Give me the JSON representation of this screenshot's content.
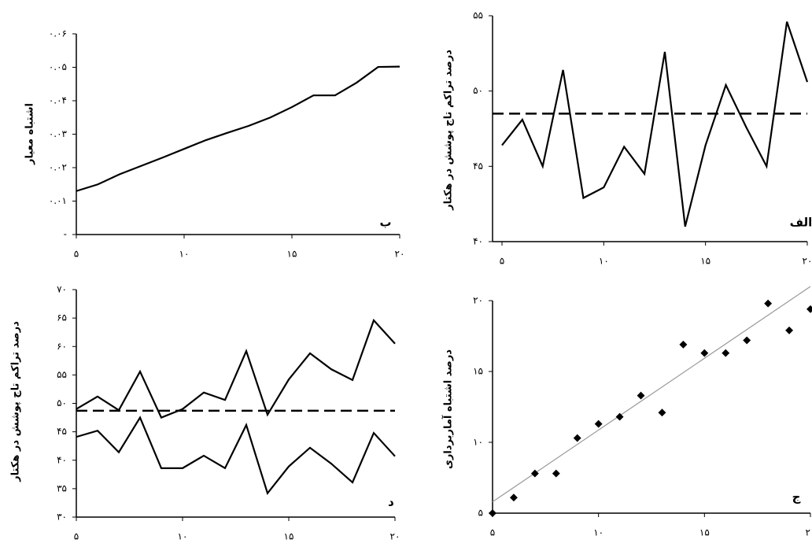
{
  "chart_data": [
    {
      "type": "line",
      "panel_label": "ب",
      "y_label": "اشتباه معیار",
      "x": [
        5,
        6,
        7,
        8,
        9,
        10,
        11,
        12,
        13,
        14,
        15,
        16,
        17,
        18,
        19,
        20
      ],
      "xlim": [
        5,
        20
      ],
      "xticks": [
        {
          "value": 5,
          "label": "۵"
        },
        {
          "value": 10,
          "label": "۱۰"
        },
        {
          "value": 15,
          "label": "۱۵"
        },
        {
          "value": 20,
          "label": "۲۰"
        }
      ],
      "ylim": [
        0,
        0.06
      ],
      "yticks": [
        {
          "value": 0,
          "label": "-"
        },
        {
          "value": 0.01,
          "label": "۰.۰۱"
        },
        {
          "value": 0.02,
          "label": "۰.۰۲"
        },
        {
          "value": 0.03,
          "label": "۰.۰۳"
        },
        {
          "value": 0.04,
          "label": "۰.۰۴"
        },
        {
          "value": 0.05,
          "label": "۰.۰۵"
        },
        {
          "value": 0.06,
          "label": "۰.۰۶"
        }
      ],
      "series": [
        {
          "color": "#000000",
          "values": [
            0.013,
            0.015,
            0.018,
            0.0205,
            0.023,
            0.0256,
            0.0282,
            0.0304,
            0.0325,
            0.035,
            0.0381,
            0.0416,
            0.0416,
            0.0454,
            0.0501,
            0.0502
          ]
        }
      ]
    },
    {
      "type": "line",
      "panel_label": "الف",
      "y_label": "درصد تراکم تاج پوشش در هکتار",
      "x": [
        5,
        6,
        7,
        8,
        9,
        10,
        11,
        12,
        13,
        14,
        15,
        16,
        17,
        18,
        19,
        20
      ],
      "xlim": [
        5,
        20
      ],
      "xticks": [
        {
          "value": 5,
          "label": "۵"
        },
        {
          "value": 10,
          "label": "۱۰"
        },
        {
          "value": 15,
          "label": "۱۵"
        },
        {
          "value": 20,
          "label": "۲۰"
        }
      ],
      "ylim": [
        40,
        55
      ],
      "yticks": [
        {
          "value": 40,
          "label": "۴۰"
        },
        {
          "value": 45,
          "label": "۴۵"
        },
        {
          "value": 50,
          "label": "۵۰"
        },
        {
          "value": 55,
          "label": "۵۵"
        }
      ],
      "reference_line": 48.5,
      "series": [
        {
          "color": "#000000",
          "values": [
            46.4,
            48.1,
            45.0,
            51.4,
            42.9,
            43.6,
            46.3,
            44.5,
            52.6,
            41.0,
            46.4,
            50.4,
            47.6,
            45.0,
            54.6,
            50.6
          ]
        }
      ]
    },
    {
      "type": "line",
      "panel_label": "د",
      "y_label": "درصد تراکم تاج پوشش در هکتار",
      "x": [
        5,
        6,
        7,
        8,
        9,
        10,
        11,
        12,
        13,
        14,
        15,
        16,
        17,
        18,
        19,
        20
      ],
      "xlim": [
        5,
        20
      ],
      "xticks": [
        {
          "value": 5,
          "label": "۵"
        },
        {
          "value": 10,
          "label": "۱۰"
        },
        {
          "value": 15,
          "label": "۱۵"
        },
        {
          "value": 20,
          "label": "۲۰"
        }
      ],
      "ylim": [
        30,
        70
      ],
      "yticks": [
        {
          "value": 30,
          "label": "۳۰"
        },
        {
          "value": 35,
          "label": "۳۵"
        },
        {
          "value": 40,
          "label": "۴۰"
        },
        {
          "value": 45,
          "label": "۴۵"
        },
        {
          "value": 50,
          "label": "۵۰"
        },
        {
          "value": 55,
          "label": "۵۵"
        },
        {
          "value": 60,
          "label": "۶۰"
        },
        {
          "value": 65,
          "label": "۶۵"
        },
        {
          "value": 70,
          "label": "۷۰"
        }
      ],
      "reference_line": 48.7,
      "series": [
        {
          "color": "#000000",
          "values": [
            49.0,
            51.2,
            48.8,
            55.6,
            47.5,
            49.0,
            51.9,
            50.6,
            59.2,
            48.0,
            54.2,
            58.8,
            56.0,
            54.1,
            64.6,
            60.5
          ]
        },
        {
          "color": "#000000",
          "values": [
            44.1,
            45.2,
            41.4,
            47.5,
            38.6,
            38.6,
            40.8,
            38.6,
            46.2,
            34.2,
            38.9,
            42.2,
            39.4,
            36.1,
            44.8,
            40.7
          ]
        }
      ]
    },
    {
      "type": "scatter",
      "panel_label": "ج",
      "y_label": "درصد اشتباه آماربرداری",
      "x": [
        5,
        6,
        7,
        8,
        9,
        10,
        11,
        12,
        13,
        14,
        15,
        16,
        17,
        18,
        19,
        20
      ],
      "xlim": [
        5,
        20
      ],
      "xticks": [
        {
          "value": 5,
          "label": "۵"
        },
        {
          "value": 10,
          "label": "۱۰"
        },
        {
          "value": 15,
          "label": "۱۵"
        },
        {
          "value": 20,
          "label": "۲۰"
        }
      ],
      "ylim": [
        5,
        20
      ],
      "yticks": [
        {
          "value": 5,
          "label": "۵"
        },
        {
          "value": 10,
          "label": "۱۰"
        },
        {
          "value": 15,
          "label": "۱۵"
        },
        {
          "value": 20,
          "label": "۲۰"
        }
      ],
      "trend_line": {
        "color": "#999999",
        "x": [
          5,
          20
        ],
        "values": [
          5.8,
          21.0
        ]
      },
      "series": [
        {
          "color": "#000000",
          "values": [
            5.0,
            6.1,
            7.8,
            7.8,
            10.3,
            11.3,
            11.8,
            13.3,
            12.1,
            16.9,
            16.3,
            16.3,
            17.2,
            19.8,
            17.9,
            19.4
          ]
        }
      ]
    }
  ]
}
